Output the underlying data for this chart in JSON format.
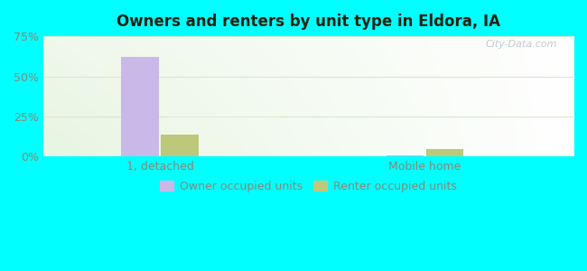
{
  "title": "Owners and renters by unit type in Eldora, IA",
  "categories": [
    "1, detached",
    "Mobile home"
  ],
  "owner_values": [
    62.0,
    1.0
  ],
  "renter_values": [
    14.0,
    5.0
  ],
  "owner_color": "#c9b8e8",
  "renter_color": "#bec87a",
  "bar_width": 0.07,
  "group_positions": [
    0.22,
    0.72
  ],
  "ylim": [
    0,
    75
  ],
  "yticks": [
    0,
    25,
    50,
    75
  ],
  "ytick_labels": [
    "0%",
    "25%",
    "50%",
    "75%"
  ],
  "xlim": [
    0.0,
    1.0
  ],
  "background_color": "#00ffff",
  "plot_bg_color": "#e8f5e2",
  "grid_color": "#d8e8cc",
  "tick_color": "#888877",
  "title_color": "#222211",
  "watermark": "City-Data.com",
  "legend_labels": [
    "Owner occupied units",
    "Renter occupied units"
  ]
}
